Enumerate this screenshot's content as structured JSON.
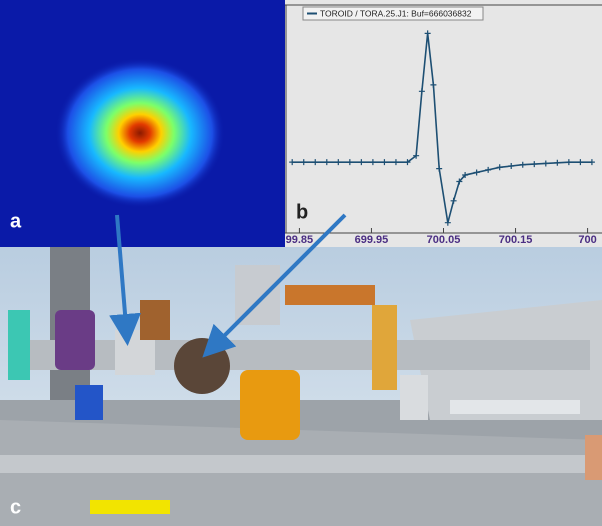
{
  "panel_labels": [
    "a",
    "b",
    "c"
  ],
  "chart_data": {
    "type": "line",
    "x": [
      699.84,
      699.856,
      699.872,
      699.888,
      699.904,
      699.92,
      699.936,
      699.952,
      699.968,
      699.984,
      700.0,
      700.012,
      700.02,
      700.028,
      700.036,
      700.044,
      700.056,
      700.064,
      700.072,
      700.08,
      700.096,
      700.112,
      700.128,
      700.144,
      700.16,
      700.176,
      700.192,
      700.208,
      700.224,
      700.24,
      700.256
    ],
    "series": [
      {
        "name": "TOROID / TORA.25.J1: Buf=666036832",
        "color": "#1d4f73",
        "values": [
          0,
          0,
          0,
          0,
          0,
          0,
          0,
          0,
          0,
          0,
          0,
          0.05,
          0.55,
          1.0,
          0.6,
          -0.05,
          -0.47,
          -0.3,
          -0.15,
          -0.1,
          -0.08,
          -0.06,
          -0.04,
          -0.03,
          -0.02,
          -0.015,
          -0.01,
          -0.005,
          0,
          0,
          0
        ]
      }
    ],
    "xlim": [
      699.83,
      700.27
    ],
    "xticks": [
      {
        "value": 699.85,
        "label": "99.85"
      },
      699.95,
      700.05,
      700.15,
      {
        "value": 700.25,
        "label": "700"
      }
    ],
    "ylim": [
      -0.55,
      1.22
    ]
  }
}
